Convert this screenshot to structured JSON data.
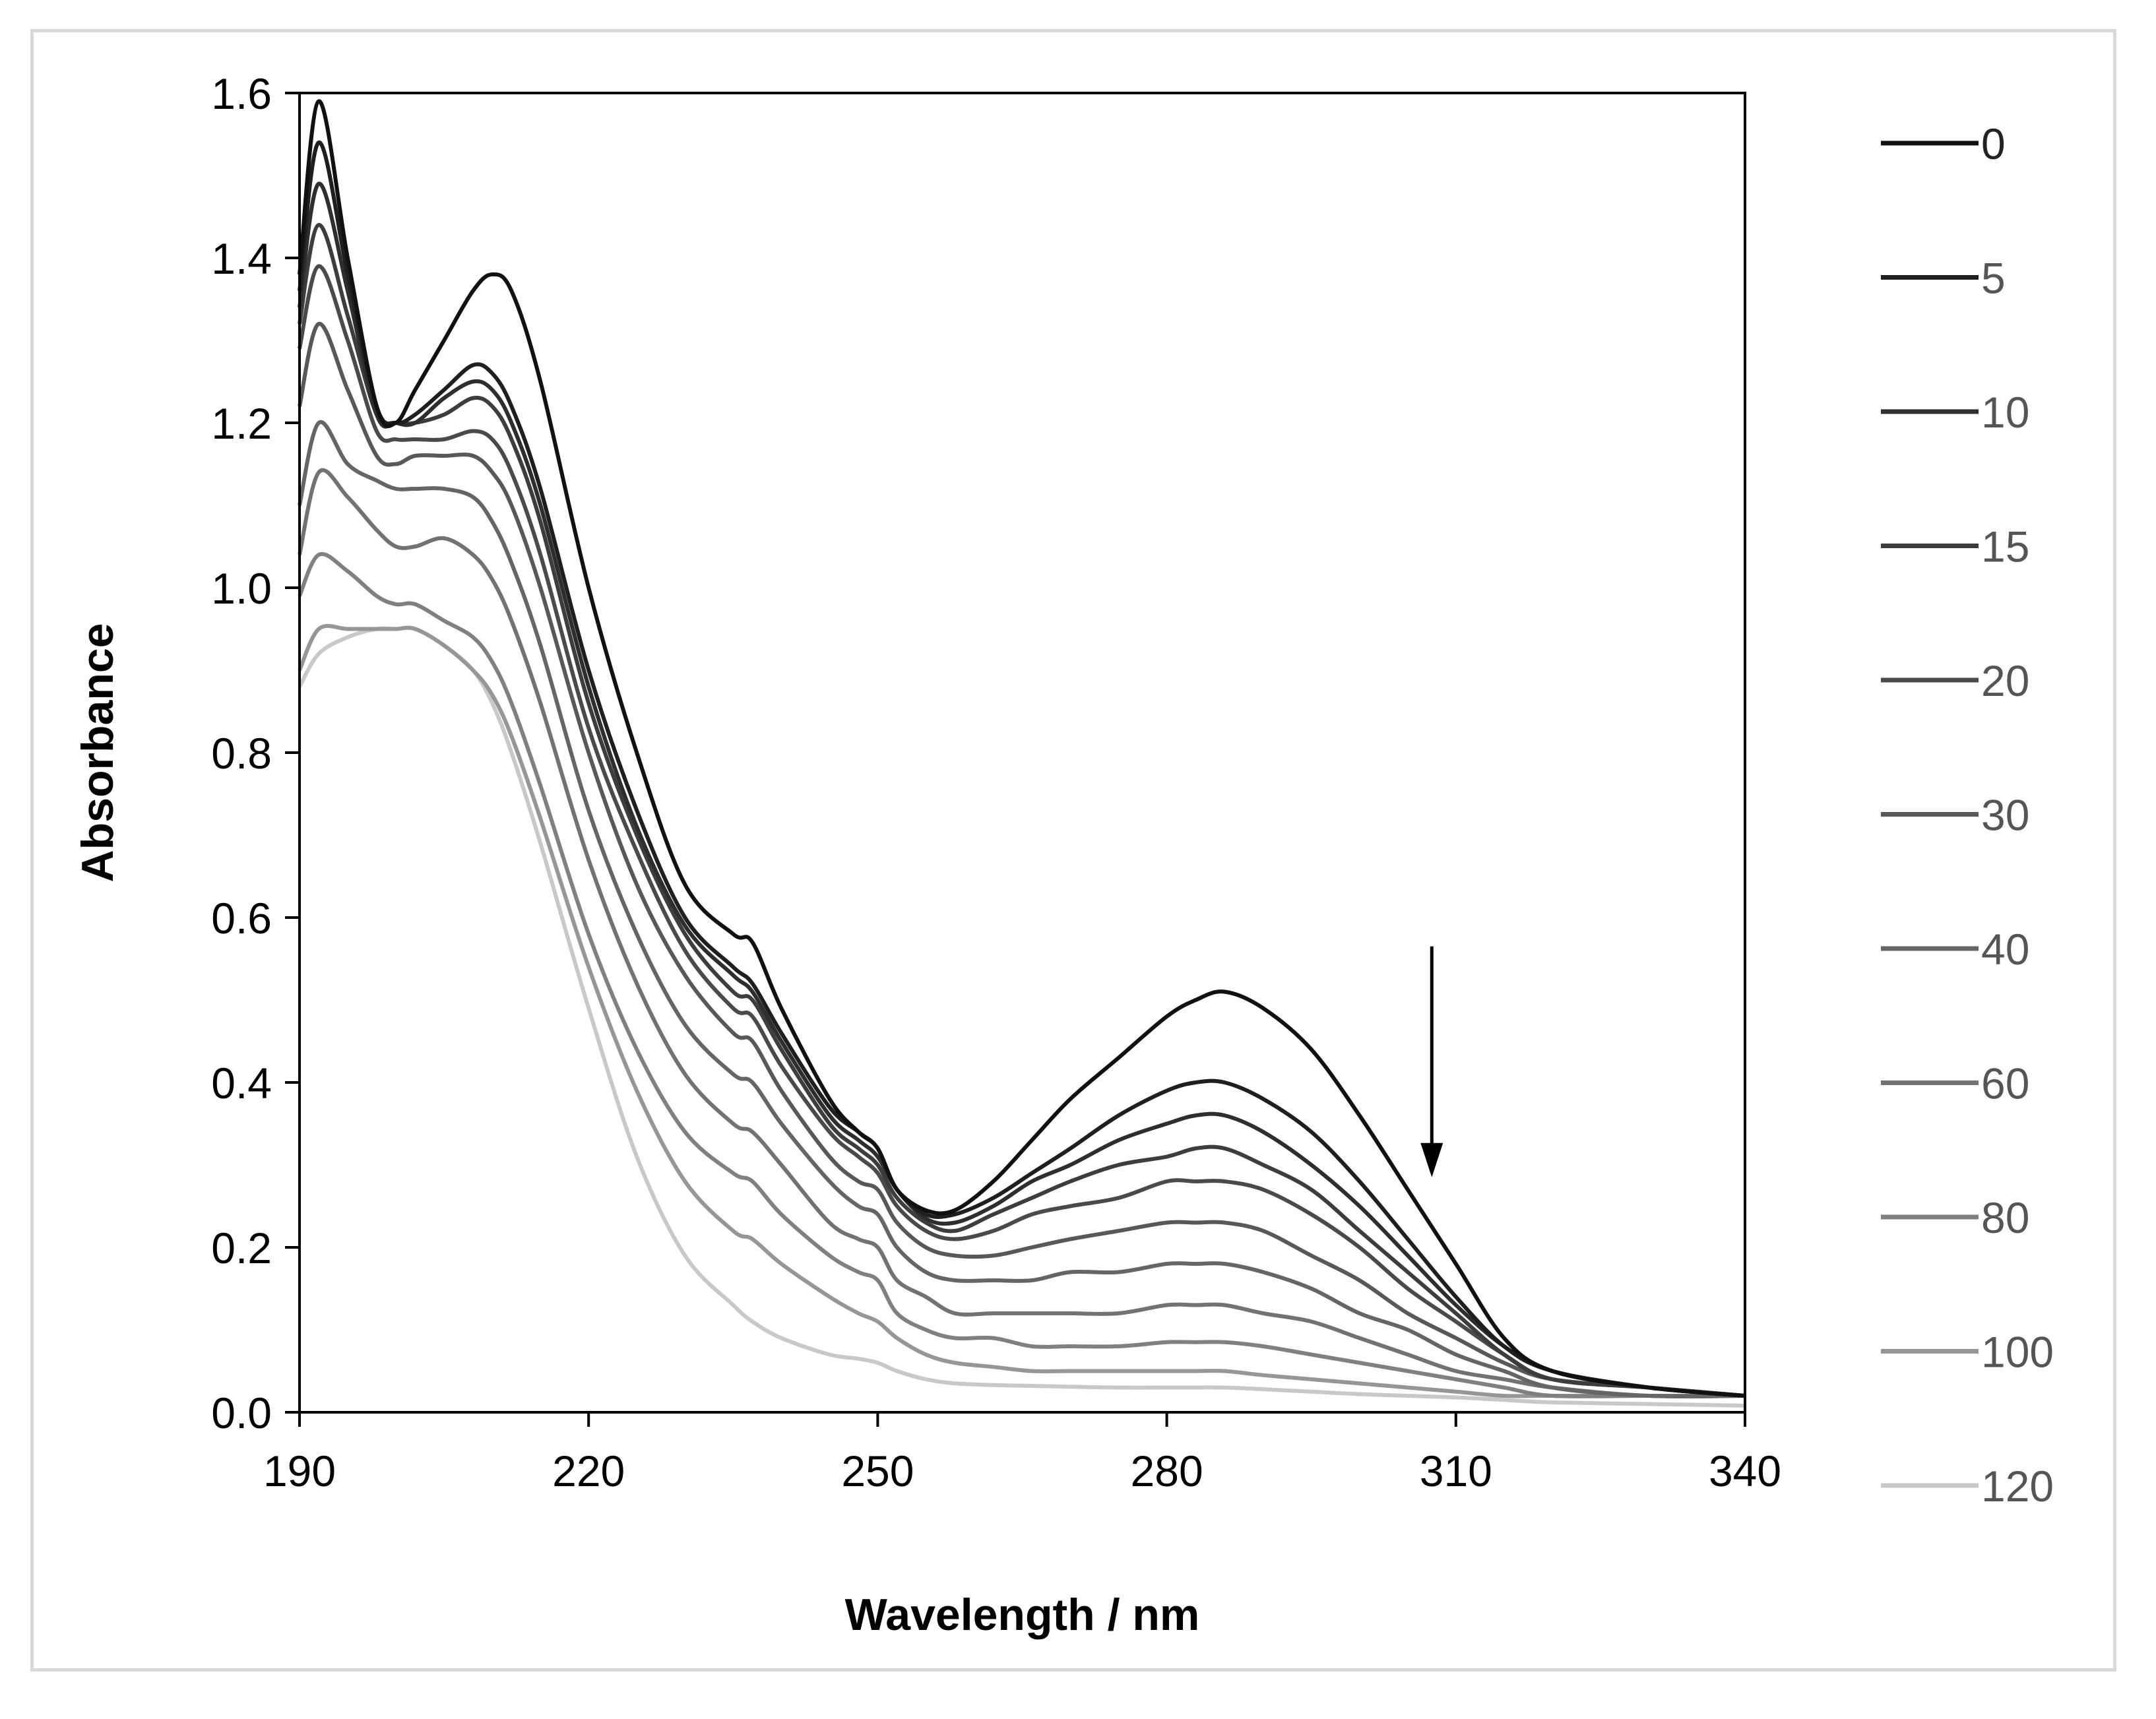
{
  "chart_data": {
    "type": "line",
    "title": "",
    "xlabel": "Wavelength / nm",
    "ylabel": "Absorbance",
    "xlim": [
      190,
      340
    ],
    "ylim": [
      0,
      1.6
    ],
    "xticks": [
      "190",
      "220",
      "250",
      "280",
      "310",
      "340"
    ],
    "yticks": [
      "0.0",
      "0.2",
      "0.4",
      "0.6",
      "0.8",
      "1.0",
      "1.2",
      "1.4",
      "1.6"
    ],
    "grid": false,
    "legend": "right",
    "annotation": "arrow at ~307 nm pointing down (absorbance decreasing with time)",
    "x": [
      190,
      192,
      195,
      198,
      200,
      202,
      205,
      208,
      210,
      212,
      215,
      220,
      225,
      230,
      235,
      237,
      240,
      245,
      248,
      250,
      252,
      255,
      258,
      262,
      266,
      270,
      275,
      280,
      283,
      286,
      290,
      295,
      300,
      305,
      310,
      315,
      320,
      330,
      340
    ],
    "series": [
      {
        "name": "0",
        "color": "#111111",
        "values": [
          1.38,
          1.59,
          1.4,
          1.22,
          1.2,
          1.24,
          1.3,
          1.36,
          1.38,
          1.36,
          1.25,
          1.0,
          0.8,
          0.64,
          0.58,
          0.57,
          0.49,
          0.38,
          0.34,
          0.32,
          0.27,
          0.245,
          0.245,
          0.28,
          0.33,
          0.38,
          0.43,
          0.48,
          0.5,
          0.51,
          0.49,
          0.44,
          0.36,
          0.27,
          0.18,
          0.09,
          0.05,
          0.03,
          0.02
        ]
      },
      {
        "name": "5",
        "color": "#1f1f1f",
        "values": [
          1.36,
          1.54,
          1.38,
          1.22,
          1.2,
          1.21,
          1.24,
          1.27,
          1.26,
          1.22,
          1.12,
          0.9,
          0.73,
          0.6,
          0.54,
          0.52,
          0.46,
          0.37,
          0.34,
          0.32,
          0.27,
          0.24,
          0.24,
          0.26,
          0.29,
          0.32,
          0.36,
          0.39,
          0.4,
          0.4,
          0.38,
          0.34,
          0.28,
          0.21,
          0.14,
          0.08,
          0.05,
          0.03,
          0.02
        ]
      },
      {
        "name": "10",
        "color": "#2e2e2e",
        "values": [
          1.34,
          1.49,
          1.36,
          1.21,
          1.2,
          1.2,
          1.23,
          1.25,
          1.24,
          1.2,
          1.1,
          0.88,
          0.71,
          0.59,
          0.53,
          0.51,
          0.45,
          0.36,
          0.33,
          0.31,
          0.27,
          0.235,
          0.23,
          0.25,
          0.28,
          0.3,
          0.33,
          0.35,
          0.36,
          0.36,
          0.34,
          0.3,
          0.25,
          0.19,
          0.13,
          0.08,
          0.05,
          0.03,
          0.02
        ]
      },
      {
        "name": "15",
        "color": "#3d3d3d",
        "values": [
          1.32,
          1.44,
          1.33,
          1.21,
          1.2,
          1.2,
          1.21,
          1.23,
          1.22,
          1.18,
          1.08,
          0.86,
          0.7,
          0.58,
          0.51,
          0.5,
          0.44,
          0.35,
          0.32,
          0.3,
          0.26,
          0.23,
          0.22,
          0.24,
          0.26,
          0.28,
          0.3,
          0.31,
          0.32,
          0.32,
          0.3,
          0.27,
          0.22,
          0.17,
          0.12,
          0.07,
          0.04,
          0.03,
          0.02
        ]
      },
      {
        "name": "20",
        "color": "#4a4a4a",
        "values": [
          1.29,
          1.39,
          1.3,
          1.19,
          1.18,
          1.18,
          1.18,
          1.19,
          1.18,
          1.14,
          1.04,
          0.83,
          0.68,
          0.56,
          0.49,
          0.48,
          0.42,
          0.34,
          0.31,
          0.29,
          0.25,
          0.22,
          0.21,
          0.22,
          0.24,
          0.25,
          0.26,
          0.28,
          0.28,
          0.28,
          0.27,
          0.24,
          0.2,
          0.15,
          0.11,
          0.07,
          0.04,
          0.03,
          0.02
        ]
      },
      {
        "name": "30",
        "color": "#585858",
        "values": [
          1.22,
          1.32,
          1.24,
          1.16,
          1.15,
          1.16,
          1.16,
          1.16,
          1.14,
          1.1,
          1.0,
          0.8,
          0.64,
          0.53,
          0.46,
          0.45,
          0.39,
          0.31,
          0.28,
          0.27,
          0.23,
          0.2,
          0.19,
          0.19,
          0.2,
          0.21,
          0.22,
          0.23,
          0.23,
          0.23,
          0.22,
          0.19,
          0.16,
          0.12,
          0.09,
          0.06,
          0.04,
          0.03,
          0.02
        ]
      },
      {
        "name": "40",
        "color": "#656565",
        "values": [
          1.1,
          1.2,
          1.15,
          1.13,
          1.12,
          1.12,
          1.12,
          1.11,
          1.08,
          1.03,
          0.93,
          0.73,
          0.58,
          0.47,
          0.41,
          0.4,
          0.35,
          0.28,
          0.25,
          0.24,
          0.2,
          0.17,
          0.16,
          0.16,
          0.16,
          0.17,
          0.17,
          0.18,
          0.18,
          0.18,
          0.17,
          0.15,
          0.12,
          0.1,
          0.07,
          0.05,
          0.03,
          0.02,
          0.02
        ]
      },
      {
        "name": "60",
        "color": "#727272",
        "values": [
          1.04,
          1.14,
          1.11,
          1.07,
          1.05,
          1.05,
          1.06,
          1.04,
          1.01,
          0.96,
          0.86,
          0.67,
          0.52,
          0.41,
          0.35,
          0.34,
          0.3,
          0.23,
          0.21,
          0.2,
          0.16,
          0.14,
          0.12,
          0.12,
          0.12,
          0.12,
          0.12,
          0.13,
          0.13,
          0.13,
          0.12,
          0.11,
          0.09,
          0.07,
          0.05,
          0.04,
          0.03,
          0.02,
          0.02
        ]
      },
      {
        "name": "80",
        "color": "#808080",
        "values": [
          0.99,
          1.04,
          1.02,
          0.99,
          0.98,
          0.98,
          0.96,
          0.94,
          0.91,
          0.86,
          0.76,
          0.58,
          0.44,
          0.34,
          0.29,
          0.28,
          0.24,
          0.19,
          0.17,
          0.16,
          0.12,
          0.1,
          0.09,
          0.09,
          0.08,
          0.08,
          0.08,
          0.085,
          0.085,
          0.085,
          0.08,
          0.07,
          0.06,
          0.05,
          0.04,
          0.03,
          0.02,
          0.02,
          0.02
        ]
      },
      {
        "name": "100",
        "color": "#969696",
        "values": [
          0.9,
          0.95,
          0.95,
          0.95,
          0.95,
          0.95,
          0.93,
          0.9,
          0.87,
          0.82,
          0.72,
          0.54,
          0.39,
          0.28,
          0.22,
          0.21,
          0.18,
          0.14,
          0.12,
          0.11,
          0.09,
          0.07,
          0.06,
          0.055,
          0.05,
          0.05,
          0.05,
          0.05,
          0.05,
          0.05,
          0.045,
          0.04,
          0.035,
          0.03,
          0.025,
          0.02,
          0.02,
          0.02,
          0.02
        ]
      },
      {
        "name": "120",
        "color": "#c8c8c8",
        "values": [
          0.88,
          0.92,
          0.94,
          0.95,
          0.95,
          0.95,
          0.93,
          0.9,
          0.86,
          0.8,
          0.69,
          0.49,
          0.31,
          0.19,
          0.13,
          0.11,
          0.09,
          0.07,
          0.065,
          0.06,
          0.05,
          0.04,
          0.035,
          0.033,
          0.032,
          0.031,
          0.03,
          0.03,
          0.03,
          0.03,
          0.028,
          0.025,
          0.022,
          0.02,
          0.018,
          0.015,
          0.012,
          0.01,
          0.008
        ]
      }
    ]
  }
}
